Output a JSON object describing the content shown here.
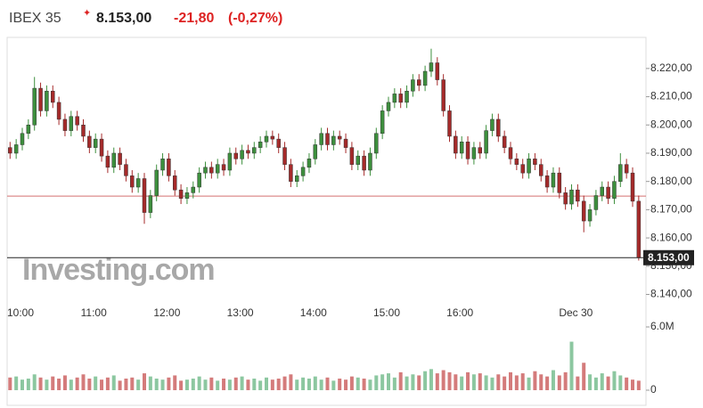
{
  "header": {
    "name": "IBEX 35",
    "price": "8.153,00",
    "change": "-21,80",
    "change_pct": "(-0,27%)",
    "watermark": "Investing.com"
  },
  "chart_data": {
    "type": "candlestick",
    "categories": [
      null,
      null,
      "10:00",
      null,
      null,
      null,
      null,
      null,
      null,
      null,
      null,
      null,
      null,
      null,
      "11:00",
      null,
      null,
      null,
      null,
      null,
      null,
      null,
      null,
      null,
      null,
      null,
      "12:00",
      null,
      null,
      null,
      null,
      null,
      null,
      null,
      null,
      null,
      null,
      null,
      "13:00",
      null,
      null,
      null,
      null,
      null,
      null,
      null,
      null,
      null,
      null,
      null,
      "14:00",
      null,
      null,
      null,
      null,
      null,
      null,
      null,
      null,
      null,
      null,
      null,
      "15:00",
      null,
      null,
      null,
      null,
      null,
      null,
      null,
      null,
      null,
      null,
      null,
      "16:00",
      null,
      null,
      null,
      null,
      null,
      null,
      null,
      null,
      null,
      null,
      null,
      null,
      null,
      null,
      null,
      null,
      null,
      null,
      "Dec 30",
      null,
      null,
      null,
      null,
      null,
      null,
      null,
      null,
      null,
      null
    ],
    "open": [
      8192,
      8190,
      8193,
      8197,
      8200,
      8213,
      8205,
      8212,
      8208,
      8202,
      8198,
      8203,
      8200,
      8196,
      8192,
      8195,
      8189,
      8185,
      8190,
      8186,
      8182,
      8178,
      8181,
      8169,
      8175,
      8184,
      8188,
      8182,
      8177,
      8174,
      8176,
      8178,
      8183,
      8185,
      8183,
      8186,
      8184,
      8190,
      8188,
      8191,
      8190,
      8192,
      8194,
      8196,
      8195,
      8192,
      8186,
      8180,
      8182,
      8185,
      8188,
      8193,
      8197,
      8193,
      8196,
      8195,
      8192,
      8186,
      8189,
      8184,
      8190,
      8197,
      8205,
      8208,
      8211,
      8208,
      8212,
      8216,
      8214,
      8219,
      8222,
      8216,
      8205,
      8196,
      8190,
      8194,
      8188,
      8192,
      8190,
      8198,
      8202,
      8196,
      8192,
      8188,
      8186,
      8183,
      8188,
      8186,
      8182,
      8178,
      8183,
      8176,
      8172,
      8177,
      8173,
      8166,
      8170,
      8175,
      8178,
      8174,
      8180,
      8186,
      8183,
      8173
    ],
    "high": [
      8194,
      8195,
      8199,
      8202,
      8217,
      8215,
      8214,
      8214,
      8210,
      8204,
      8205,
      8205,
      8202,
      8198,
      8197,
      8197,
      8191,
      8192,
      8192,
      8188,
      8184,
      8183,
      8183,
      8177,
      8186,
      8190,
      8190,
      8184,
      8179,
      8178,
      8180,
      8185,
      8187,
      8187,
      8188,
      8188,
      8192,
      8192,
      8193,
      8193,
      8194,
      8196,
      8198,
      8198,
      8197,
      8194,
      8188,
      8184,
      8187,
      8190,
      8195,
      8199,
      8199,
      8198,
      8198,
      8197,
      8194,
      8191,
      8191,
      8192,
      8199,
      8207,
      8210,
      8213,
      8213,
      8214,
      8218,
      8218,
      8221,
      8227,
      8224,
      8218,
      8207,
      8198,
      8196,
      8196,
      8194,
      8194,
      8200,
      8204,
      8204,
      8198,
      8194,
      8190,
      8188,
      8190,
      8190,
      8188,
      8184,
      8185,
      8185,
      8178,
      8179,
      8179,
      8175,
      8172,
      8177,
      8180,
      8180,
      8182,
      8190,
      8188,
      8185,
      8175
    ],
    "low": [
      8188,
      8188,
      8191,
      8195,
      8198,
      8203,
      8203,
      8206,
      8200,
      8196,
      8196,
      8198,
      8194,
      8190,
      8190,
      8187,
      8183,
      8183,
      8184,
      8180,
      8176,
      8176,
      8165,
      8167,
      8173,
      8182,
      8180,
      8175,
      8172,
      8172,
      8174,
      8176,
      8181,
      8181,
      8181,
      8182,
      8182,
      8186,
      8186,
      8188,
      8188,
      8190,
      8192,
      8193,
      8190,
      8184,
      8178,
      8178,
      8180,
      8183,
      8186,
      8191,
      8191,
      8191,
      8193,
      8190,
      8184,
      8184,
      8182,
      8182,
      8188,
      8195,
      8203,
      8206,
      8206,
      8206,
      8210,
      8212,
      8212,
      8217,
      8214,
      8203,
      8194,
      8188,
      8188,
      8186,
      8186,
      8188,
      8188,
      8196,
      8194,
      8190,
      8186,
      8184,
      8181,
      8181,
      8184,
      8180,
      8176,
      8176,
      8174,
      8170,
      8170,
      8171,
      8162,
      8164,
      8168,
      8173,
      8172,
      8172,
      8178,
      8181,
      8171,
      8152
    ],
    "close": [
      8190,
      8193,
      8197,
      8200,
      8213,
      8205,
      8212,
      8208,
      8202,
      8198,
      8203,
      8200,
      8196,
      8192,
      8195,
      8189,
      8185,
      8190,
      8186,
      8182,
      8178,
      8181,
      8169,
      8175,
      8184,
      8188,
      8182,
      8177,
      8174,
      8176,
      8178,
      8183,
      8185,
      8183,
      8186,
      8184,
      8190,
      8188,
      8191,
      8190,
      8192,
      8194,
      8196,
      8195,
      8192,
      8186,
      8180,
      8182,
      8185,
      8188,
      8193,
      8197,
      8193,
      8196,
      8195,
      8192,
      8186,
      8189,
      8184,
      8190,
      8197,
      8205,
      8208,
      8211,
      8208,
      8212,
      8216,
      8214,
      8219,
      8222,
      8216,
      8205,
      8196,
      8190,
      8194,
      8188,
      8192,
      8190,
      8198,
      8202,
      8196,
      8192,
      8188,
      8186,
      8183,
      8188,
      8186,
      8182,
      8178,
      8183,
      8176,
      8172,
      8177,
      8173,
      8166,
      8170,
      8175,
      8178,
      8174,
      8180,
      8186,
      8183,
      8173,
      8153
    ],
    "volume": [
      1200000,
      1300000,
      1000000,
      1100000,
      1500000,
      1200000,
      1000000,
      1300000,
      1100000,
      1400000,
      1000000,
      1200000,
      1500000,
      1100000,
      1300000,
      1000000,
      1200000,
      1400000,
      900000,
      1100000,
      1200000,
      1000000,
      1600000,
      1300000,
      1100000,
      1000000,
      1200000,
      1400000,
      900000,
      1000000,
      1100000,
      1300000,
      1000000,
      1200000,
      900000,
      1100000,
      1000000,
      1200000,
      1300000,
      1000000,
      1100000,
      900000,
      1200000,
      1000000,
      1100000,
      1300000,
      1500000,
      1000000,
      1200000,
      1100000,
      1300000,
      1000000,
      1200000,
      900000,
      1100000,
      1000000,
      1300000,
      1200000,
      1100000,
      1000000,
      1400000,
      1500000,
      1600000,
      1200000,
      1700000,
      1300000,
      1500000,
      1400000,
      1800000,
      2000000,
      1600000,
      1900000,
      1700000,
      1500000,
      1300000,
      1700000,
      1500000,
      1600000,
      1400000,
      1200000,
      1500000,
      1300000,
      1700000,
      1400000,
      1600000,
      1200000,
      1800000,
      1500000,
      1300000,
      1900000,
      1400000,
      1700000,
      4600000,
      1300000,
      2600000,
      1500000,
      1200000,
      1600000,
      1300000,
      1800000,
      1400000,
      1200000,
      1000000,
      900000
    ],
    "up_color": "#3d8f3d",
    "down_color": "#a52a2a",
    "up_volume_color": "#8cc7a0",
    "down_volume_color": "#d47b7b",
    "ylim": [
      8137,
      8231
    ],
    "yticks": [
      {
        "value": 8140,
        "label": "8.140,00"
      },
      {
        "value": 8150,
        "label": "8.150,00"
      },
      {
        "value": 8160,
        "label": "8.160,00"
      },
      {
        "value": 8170,
        "label": "8.170,00"
      },
      {
        "value": 8180,
        "label": "8.180,00"
      },
      {
        "value": 8190,
        "label": "8.190,00"
      },
      {
        "value": 8200,
        "label": "8.200,00"
      },
      {
        "value": 8210,
        "label": "8.210,00"
      },
      {
        "value": 8220,
        "label": "8.220,00"
      }
    ],
    "reference_line": 8174.8,
    "reference_color": "#d47070",
    "last_price": {
      "value": 8153,
      "label": "8.153,00"
    },
    "volume_lim": [
      0,
      6000000
    ],
    "volume_ticks": [
      0,
      {
        "value": 6000000,
        "label": "6.0M"
      }
    ]
  }
}
